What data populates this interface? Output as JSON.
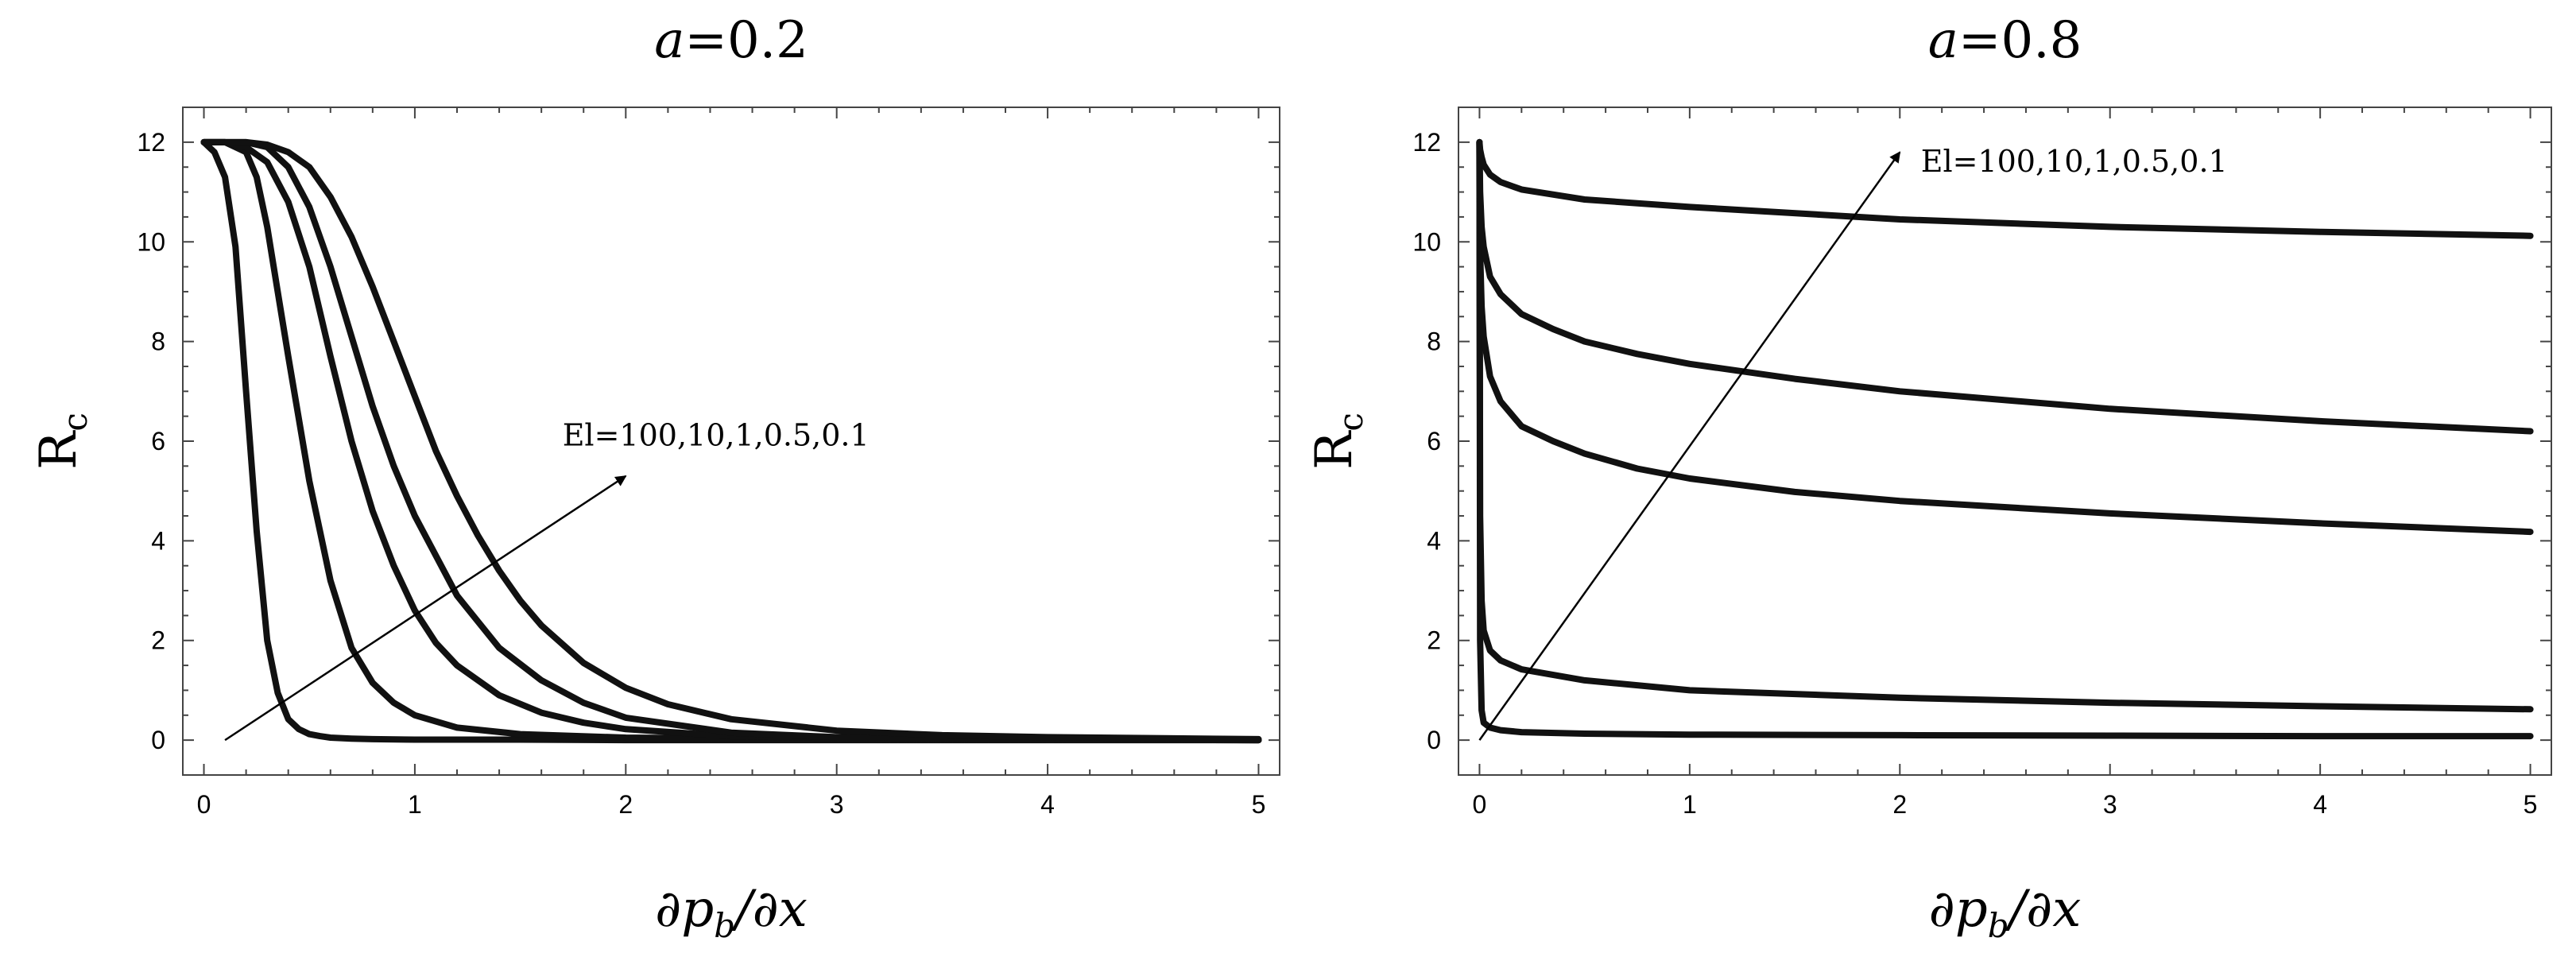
{
  "chart_data": [
    {
      "type": "line",
      "title": "a=0.2",
      "title_var": "a",
      "title_value": "=0.2",
      "xlabel": "∂p_b/∂x",
      "ylabel": "R_c",
      "xlim": [
        -0.1,
        5.1
      ],
      "ylim": [
        -0.7,
        12.7
      ],
      "xticks": [
        "0",
        "1",
        "2",
        "3",
        "4",
        "5"
      ],
      "yticks": [
        "0",
        "2",
        "4",
        "6",
        "8",
        "10",
        "12"
      ],
      "xtick_values": [
        0,
        1,
        2,
        3,
        4,
        5
      ],
      "ytick_values": [
        0,
        2,
        4,
        6,
        8,
        10,
        12
      ],
      "annotation": {
        "text": "El=100,10,1,0.5,0.1",
        "arrow_from": [
          0.1,
          0.0
        ],
        "arrow_to": [
          2.0,
          5.3
        ],
        "text_at": [
          1.7,
          6.1
        ]
      },
      "series": [
        {
          "x": [
            0,
            0.05,
            0.1,
            0.15,
            0.2,
            0.25,
            0.3,
            0.35,
            0.4,
            0.45,
            0.5,
            0.55,
            0.6,
            0.7,
            0.8,
            1.0,
            1.5,
            2.0,
            3.0,
            4.0,
            5.0
          ],
          "y": [
            12,
            11.8,
            11.3,
            9.9,
            7.0,
            4.2,
            2.0,
            0.95,
            0.42,
            0.22,
            0.12,
            0.08,
            0.05,
            0.03,
            0.02,
            0.01,
            0.01,
            0.0,
            0.0,
            0.0,
            0.0
          ]
        },
        {
          "x": [
            0,
            0.1,
            0.2,
            0.25,
            0.3,
            0.35,
            0.4,
            0.5,
            0.6,
            0.7,
            0.8,
            0.9,
            1.0,
            1.2,
            1.5,
            2.0,
            3.0,
            4.0,
            5.0
          ],
          "y": [
            12,
            12,
            11.8,
            11.3,
            10.3,
            9.0,
            7.7,
            5.2,
            3.2,
            1.85,
            1.15,
            0.75,
            0.5,
            0.25,
            0.12,
            0.05,
            0.02,
            0.01,
            0.0
          ]
        },
        {
          "x": [
            0,
            0.1,
            0.2,
            0.3,
            0.4,
            0.5,
            0.6,
            0.7,
            0.8,
            0.9,
            1.0,
            1.1,
            1.2,
            1.4,
            1.6,
            1.8,
            2.0,
            2.5,
            3.0,
            4.0,
            5.0
          ],
          "y": [
            12,
            12,
            11.9,
            11.6,
            10.8,
            9.5,
            7.7,
            6.0,
            4.6,
            3.5,
            2.6,
            1.95,
            1.5,
            0.9,
            0.55,
            0.35,
            0.22,
            0.08,
            0.04,
            0.01,
            0.0
          ]
        },
        {
          "x": [
            0,
            0.1,
            0.2,
            0.3,
            0.4,
            0.5,
            0.6,
            0.7,
            0.8,
            0.9,
            1.0,
            1.2,
            1.4,
            1.6,
            1.8,
            2.0,
            2.5,
            3.0,
            4.0,
            5.0
          ],
          "y": [
            12,
            12,
            12,
            11.9,
            11.5,
            10.7,
            9.5,
            8.1,
            6.7,
            5.5,
            4.5,
            2.9,
            1.85,
            1.2,
            0.75,
            0.45,
            0.15,
            0.06,
            0.02,
            0.0
          ]
        },
        {
          "x": [
            0,
            0.2,
            0.3,
            0.4,
            0.5,
            0.6,
            0.7,
            0.8,
            0.9,
            1.0,
            1.1,
            1.2,
            1.3,
            1.4,
            1.5,
            1.6,
            1.8,
            2.0,
            2.2,
            2.5,
            3.0,
            3.5,
            4.0,
            4.5,
            5.0
          ],
          "y": [
            12,
            12,
            11.95,
            11.8,
            11.5,
            10.9,
            10.1,
            9.1,
            8.0,
            6.9,
            5.8,
            4.9,
            4.1,
            3.4,
            2.8,
            2.3,
            1.55,
            1.05,
            0.72,
            0.42,
            0.19,
            0.1,
            0.06,
            0.04,
            0.02
          ]
        }
      ]
    },
    {
      "type": "line",
      "title": "a=0.8",
      "title_var": "a",
      "title_value": "=0.8",
      "xlabel": "∂p_b/∂x",
      "ylabel": "R_c",
      "xlim": [
        -0.1,
        5.1
      ],
      "ylim": [
        -0.7,
        12.7
      ],
      "xticks": [
        "0",
        "1",
        "2",
        "3",
        "4",
        "5"
      ],
      "yticks": [
        "0",
        "2",
        "4",
        "6",
        "8",
        "10",
        "12"
      ],
      "xtick_values": [
        0,
        1,
        2,
        3,
        4,
        5
      ],
      "ytick_values": [
        0,
        2,
        4,
        6,
        8,
        10,
        12
      ],
      "annotation": {
        "text": "El=100,10,1,0.5,0.1",
        "arrow_from": [
          0.0,
          0.0
        ],
        "arrow_to": [
          2.0,
          11.8
        ],
        "text_at": [
          2.1,
          11.6
        ]
      },
      "series": [
        {
          "x": [
            0,
            0.003,
            0.01,
            0.02,
            0.05,
            0.1,
            0.2,
            0.5,
            1,
            2,
            3,
            4,
            5
          ],
          "y": [
            12,
            2.0,
            0.6,
            0.35,
            0.25,
            0.2,
            0.16,
            0.13,
            0.11,
            0.1,
            0.09,
            0.08,
            0.08
          ]
        },
        {
          "x": [
            0,
            0.003,
            0.01,
            0.02,
            0.05,
            0.1,
            0.2,
            0.5,
            1,
            2,
            3,
            4,
            5
          ],
          "y": [
            12,
            4.5,
            2.8,
            2.2,
            1.8,
            1.6,
            1.42,
            1.2,
            1.0,
            0.85,
            0.75,
            0.68,
            0.62
          ]
        },
        {
          "x": [
            0,
            0.003,
            0.01,
            0.02,
            0.05,
            0.1,
            0.2,
            0.35,
            0.5,
            0.75,
            1,
            1.5,
            2,
            3,
            4,
            5
          ],
          "y": [
            12,
            9.8,
            8.7,
            8.1,
            7.3,
            6.8,
            6.3,
            6.0,
            5.75,
            5.45,
            5.25,
            4.98,
            4.8,
            4.55,
            4.35,
            4.18
          ]
        },
        {
          "x": [
            0,
            0.003,
            0.01,
            0.02,
            0.05,
            0.1,
            0.2,
            0.35,
            0.5,
            0.75,
            1,
            1.5,
            2,
            3,
            4,
            5
          ],
          "y": [
            12,
            11.0,
            10.3,
            9.9,
            9.3,
            8.95,
            8.55,
            8.25,
            8.0,
            7.75,
            7.55,
            7.25,
            7.0,
            6.65,
            6.4,
            6.2
          ]
        },
        {
          "x": [
            0,
            0.003,
            0.01,
            0.02,
            0.05,
            0.1,
            0.2,
            0.5,
            1,
            2,
            3,
            4,
            5
          ],
          "y": [
            12,
            11.85,
            11.7,
            11.55,
            11.35,
            11.2,
            11.05,
            10.85,
            10.7,
            10.45,
            10.3,
            10.2,
            10.12
          ]
        }
      ]
    }
  ]
}
